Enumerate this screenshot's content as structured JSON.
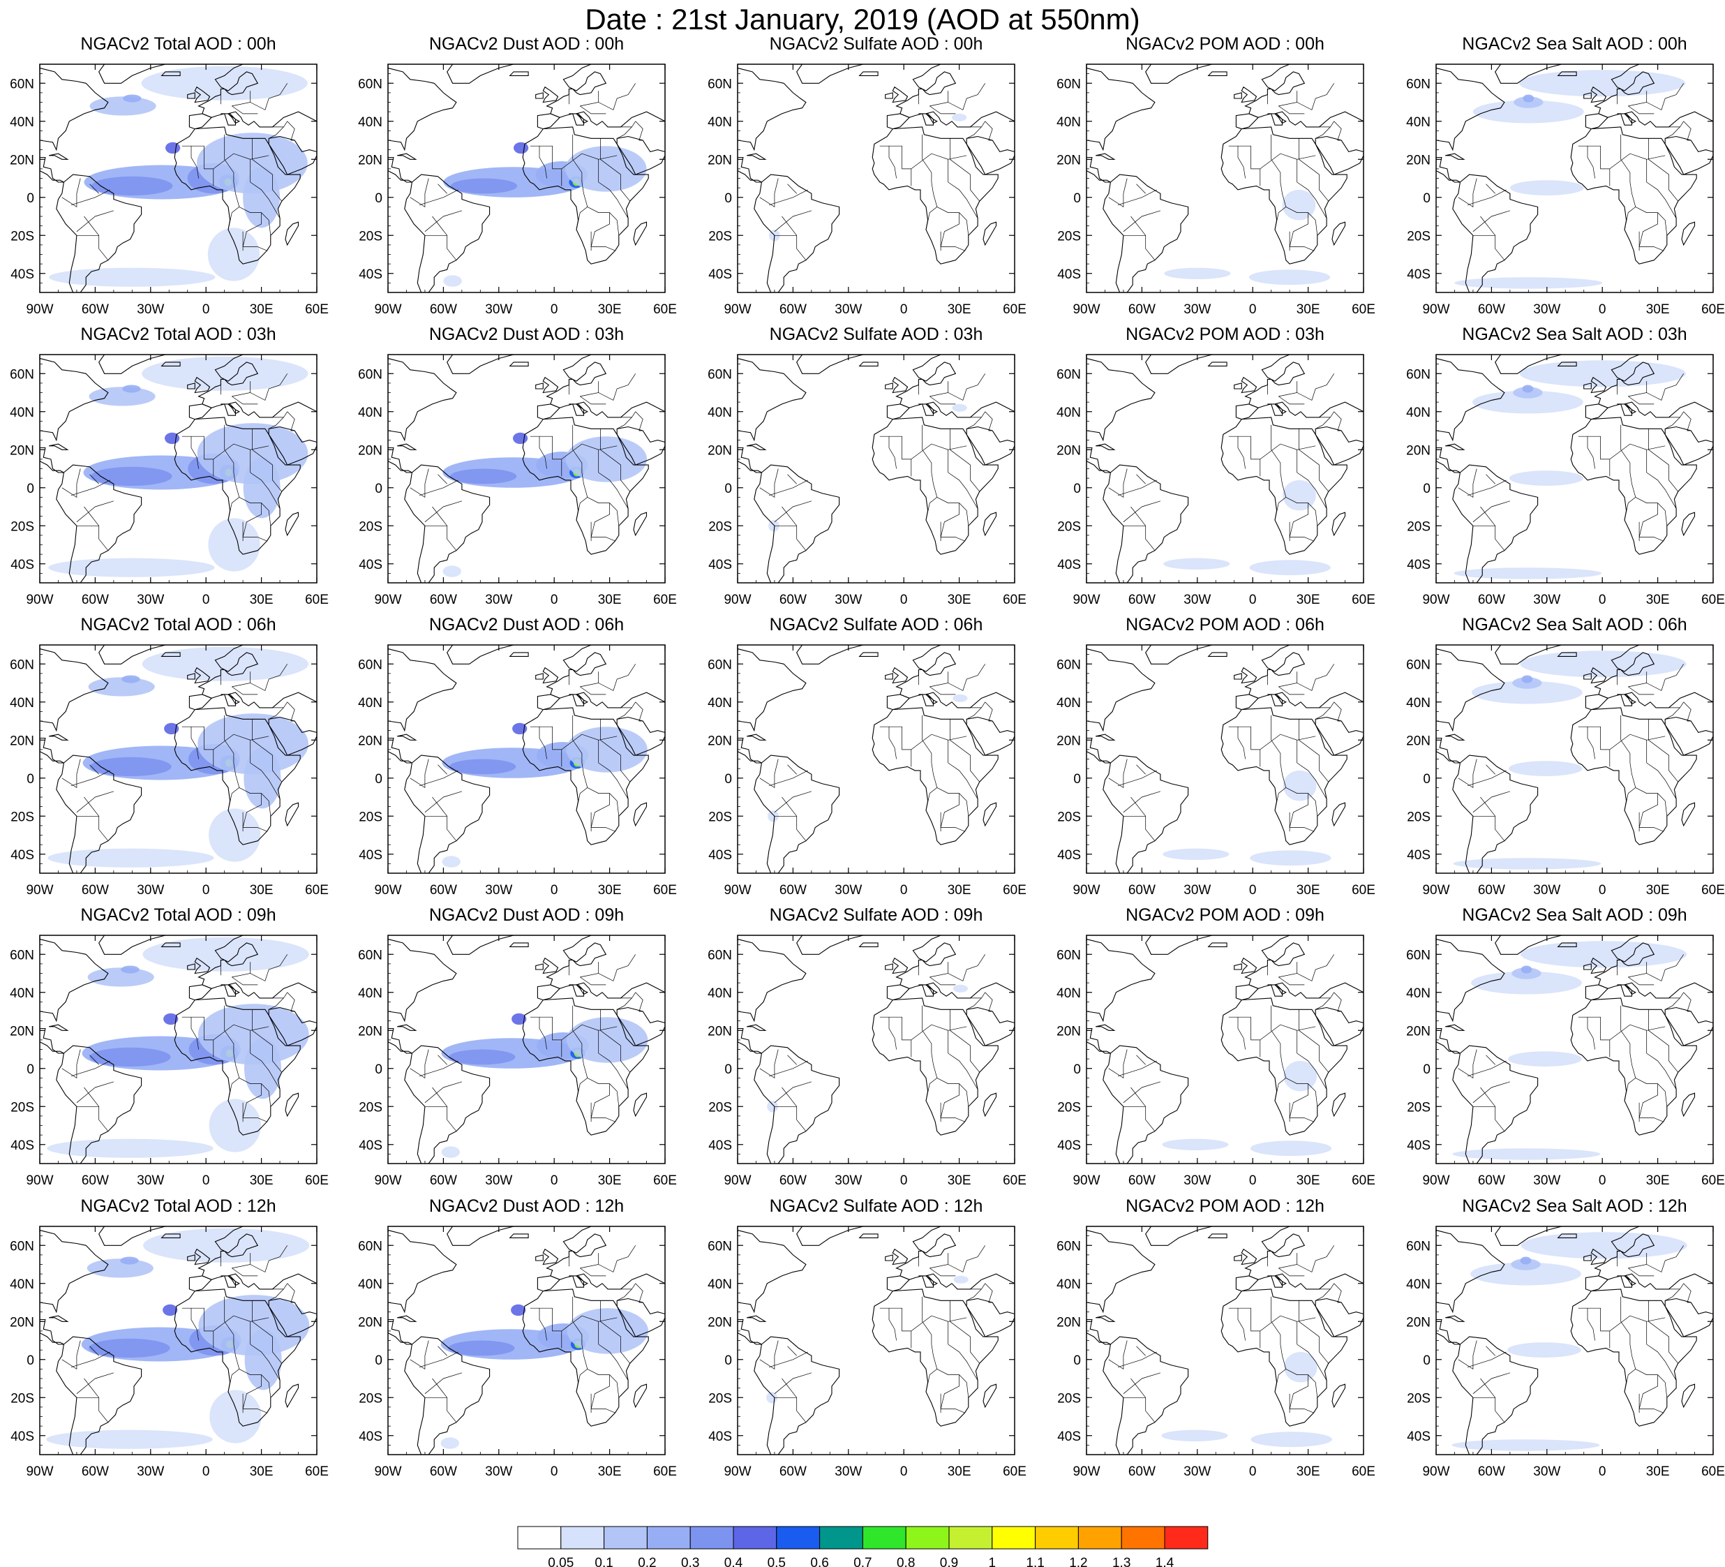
{
  "title": "Date : 21st January, 2019 (AOD at 550nm)",
  "rows": [
    "00h",
    "03h",
    "06h",
    "09h",
    "12h"
  ],
  "columns": [
    "total",
    "dust",
    "sulfate",
    "pom",
    "seasalt"
  ],
  "panel_titles": [
    [
      "NGACv2 Total AOD : 00h",
      "NGACv2 Dust AOD : 00h",
      "NGACv2 Sulfate AOD : 00h",
      "NGACv2 POM AOD : 00h",
      "NGACv2 Sea Salt AOD : 00h"
    ],
    [
      "NGACv2 Total AOD : 03h",
      "NGACv2 Dust AOD : 03h",
      "NGACv2 Sulfate AOD : 03h",
      "NGACv2 POM AOD : 03h",
      "NGACv2 Sea Salt AOD : 03h"
    ],
    [
      "NGACv2 Total AOD : 06h",
      "NGACv2 Dust AOD : 06h",
      "NGACv2 Sulfate AOD : 06h",
      "NGACv2 POM AOD : 06h",
      "NGACv2 Sea Salt AOD : 06h"
    ],
    [
      "NGACv2 Total AOD : 09h",
      "NGACv2 Dust AOD : 09h",
      "NGACv2 Sulfate AOD : 09h",
      "NGACv2 POM AOD : 09h",
      "NGACv2 Sea Salt  AOD : 09h"
    ],
    [
      "NGACv2 Total AOD  : 12h",
      "NGACv2 Dust AOD : 12h",
      "NGACv2 Sulfate AOD : 12h",
      "NGACv2 POM  AOD : 12h",
      "NGACv2 Sea Salt  AOD : 12h"
    ]
  ],
  "map": {
    "lon_range": [
      -90,
      60
    ],
    "lat_range": [
      -50,
      70
    ],
    "lon_ticks": [
      -90,
      -60,
      -30,
      0,
      30,
      60
    ],
    "lon_tick_labels": [
      "90W",
      "60W",
      "30W",
      "0",
      "30E",
      "60E"
    ],
    "lat_ticks": [
      60,
      40,
      20,
      0,
      -20,
      -40
    ],
    "lat_tick_labels": [
      "60N",
      "40N",
      "20N",
      "0",
      "20S",
      "40S"
    ]
  },
  "colorbar": {
    "levels": [
      "0.05",
      "0.1",
      "0.2",
      "0.3",
      "0.4",
      "0.5",
      "0.6",
      "0.7",
      "0.8",
      "0.9",
      "1",
      "1.1",
      "1.2",
      "1.3",
      "1.4"
    ],
    "colors": [
      "#ffffff",
      "#d6e1fb",
      "#b3c5f7",
      "#97aef5",
      "#7d93f0",
      "#5c66e6",
      "#1a5cf0",
      "#00968c",
      "#2fe62b",
      "#8ef51a",
      "#c5f02f",
      "#ffff00",
      "#ffcc00",
      "#ffa200",
      "#ff7300",
      "#ff2a1a"
    ]
  },
  "field_levels": {
    "total": [
      {
        "lon": -24,
        "lat": 8,
        "rx": 42,
        "ry": 9,
        "level": 3
      },
      {
        "lon": -40,
        "lat": 6,
        "rx": 22,
        "ry": 5,
        "level": 4
      },
      {
        "lon": 4,
        "lat": 10,
        "rx": 14,
        "ry": 8,
        "level": 4
      },
      {
        "lon": 12,
        "lat": 8,
        "rx": 5,
        "ry": 4,
        "level": 6
      },
      {
        "lon": 12,
        "lat": 8,
        "rx": 2,
        "ry": 2,
        "level": 9
      },
      {
        "lon": -18,
        "lat": 26,
        "rx": 4,
        "ry": 3,
        "level": 5
      },
      {
        "lon": 25,
        "lat": 18,
        "rx": 30,
        "ry": 16,
        "level": 2
      },
      {
        "lon": -45,
        "lat": 48,
        "rx": 18,
        "ry": 5,
        "level": 2
      },
      {
        "lon": -40,
        "lat": 52,
        "rx": 5,
        "ry": 2,
        "level": 3
      },
      {
        "lon": 10,
        "lat": 60,
        "rx": 45,
        "ry": 9,
        "level": 1
      },
      {
        "lon": -40,
        "lat": -42,
        "rx": 45,
        "ry": 5,
        "level": 1
      },
      {
        "lon": 15,
        "lat": -30,
        "rx": 14,
        "ry": 14,
        "level": 1
      },
      {
        "lon": 30,
        "lat": 0,
        "rx": 10,
        "ry": 16,
        "level": 2
      }
    ],
    "dust": [
      {
        "lon": -22,
        "lat": 8,
        "rx": 38,
        "ry": 8,
        "level": 3
      },
      {
        "lon": -38,
        "lat": 6,
        "rx": 18,
        "ry": 4,
        "level": 4
      },
      {
        "lon": 4,
        "lat": 12,
        "rx": 14,
        "ry": 7,
        "level": 3
      },
      {
        "lon": 12,
        "lat": 8,
        "rx": 4,
        "ry": 3,
        "level": 6
      },
      {
        "lon": 12,
        "lat": 8,
        "rx": 2,
        "ry": 2,
        "level": 9
      },
      {
        "lon": -18,
        "lat": 26,
        "rx": 4,
        "ry": 3,
        "level": 5
      },
      {
        "lon": 28,
        "lat": 15,
        "rx": 22,
        "ry": 12,
        "level": 2
      },
      {
        "lon": -55,
        "lat": -44,
        "rx": 5,
        "ry": 3,
        "level": 1
      }
    ],
    "sulfate": [
      {
        "lon": 30,
        "lat": 42,
        "rx": 4,
        "ry": 2,
        "level": 1
      },
      {
        "lon": -70,
        "lat": -20,
        "rx": 3,
        "ry": 3,
        "level": 1
      }
    ],
    "pom": [
      {
        "lon": 25,
        "lat": -4,
        "rx": 9,
        "ry": 8,
        "level": 1
      },
      {
        "lon": 20,
        "lat": -42,
        "rx": 22,
        "ry": 4,
        "level": 1
      },
      {
        "lon": -30,
        "lat": -40,
        "rx": 18,
        "ry": 3,
        "level": 1
      }
    ],
    "seasalt": [
      {
        "lon": -40,
        "lat": 45,
        "rx": 30,
        "ry": 6,
        "level": 1
      },
      {
        "lon": -40,
        "lat": 50,
        "rx": 8,
        "ry": 3,
        "level": 2
      },
      {
        "lon": -40,
        "lat": 52,
        "rx": 3,
        "ry": 2,
        "level": 3
      },
      {
        "lon": 0,
        "lat": 60,
        "rx": 45,
        "ry": 7,
        "level": 1
      },
      {
        "lon": -30,
        "lat": 5,
        "rx": 20,
        "ry": 4,
        "level": 1
      },
      {
        "lon": -40,
        "lat": -45,
        "rx": 40,
        "ry": 3,
        "level": 1
      }
    ]
  }
}
